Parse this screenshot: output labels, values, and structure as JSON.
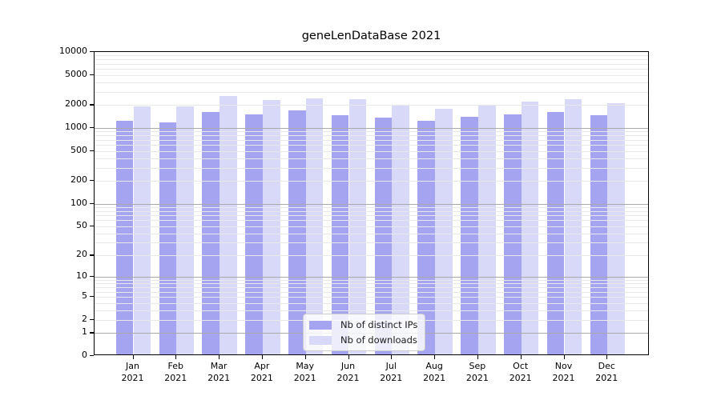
{
  "title": "geneLenDataBase 2021",
  "legend": {
    "items": [
      {
        "label": "Nb of distinct IPs",
        "color": "#a4a4f0"
      },
      {
        "label": "Nb of downloads",
        "color": "#d8d8f9"
      }
    ]
  },
  "chart_data": {
    "type": "bar",
    "title": "geneLenDataBase 2021",
    "categories": [
      "Jan 2021",
      "Feb 2021",
      "Mar 2021",
      "Apr 2021",
      "May 2021",
      "Jun 2021",
      "Jul 2021",
      "Aug 2021",
      "Sep 2021",
      "Oct 2021",
      "Nov 2021",
      "Dec 2021"
    ],
    "series": [
      {
        "name": "Nb of distinct IPs",
        "color": "#a4a4f0",
        "values": [
          1200,
          1170,
          1600,
          1470,
          1650,
          1440,
          1350,
          1210,
          1360,
          1460,
          1570,
          1430
        ]
      },
      {
        "name": "Nb of downloads",
        "color": "#d8d8f9",
        "values": [
          1900,
          1860,
          2600,
          2280,
          2380,
          2320,
          1910,
          1750,
          1940,
          2170,
          2360,
          2060
        ]
      }
    ],
    "yscale": "log10(value+1)",
    "ylim": [
      0,
      10000
    ],
    "yticks": [
      0,
      1,
      2,
      5,
      10,
      20,
      50,
      100,
      200,
      500,
      1000,
      2000,
      5000,
      10000
    ],
    "major_gridlines": [
      1,
      10,
      100,
      1000
    ],
    "minor_gridlines": [
      2,
      3,
      4,
      5,
      6,
      7,
      8,
      9,
      20,
      30,
      40,
      50,
      60,
      70,
      80,
      90,
      200,
      300,
      400,
      500,
      600,
      700,
      800,
      900,
      2000,
      3000,
      4000,
      5000,
      6000,
      7000,
      8000,
      9000
    ],
    "grid": true,
    "legend_position": "lower center"
  }
}
